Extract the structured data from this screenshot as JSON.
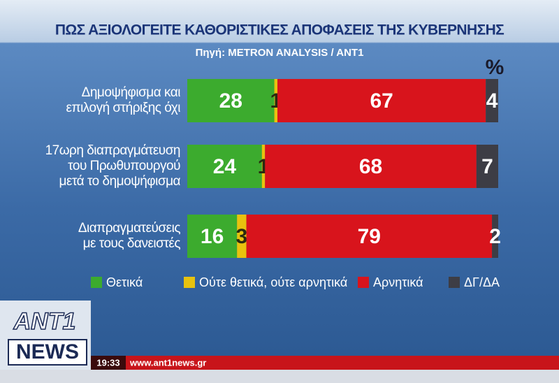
{
  "chart_data": {
    "type": "stacked-barh",
    "title": "ΠΩΣ ΑΞΙΟΛΟΓΕΙΤΕ ΚΑΘΟΡΙΣΤΙΚΕΣ ΑΠΟΦΑΣΕΙΣ ΤΗΣ ΚΥΒΕΡΝΗΣΗΣ",
    "subtitle": "Πηγή: METRON ANALYSIS / ANT1",
    "unit": "%",
    "categories": [
      "Δημοψήφισμα και\nεπιλογή στήριξης όχι",
      "17ωρη διαπραγμάτευση\nτου Πρωθυπουργού\nμετά το δημοψήφισμα",
      "Διαπραγματεύσεις\nμε τους δανειστές"
    ],
    "series": [
      {
        "name": "Θετικά",
        "color": "#3cab2e",
        "values": [
          28,
          24,
          16
        ]
      },
      {
        "name": "Ούτε θετικά, ούτε αρνητικά",
        "color": "#e8c20e",
        "values": [
          1,
          1,
          3
        ]
      },
      {
        "name": "Αρνητικά",
        "color": "#d8141c",
        "values": [
          67,
          68,
          79
        ]
      },
      {
        "name": "ΔΓ/ΔΑ",
        "color": "#3d3d45",
        "values": [
          4,
          7,
          2
        ]
      }
    ],
    "xlim": [
      0,
      100
    ]
  },
  "overlay": {
    "logo": "ANT1",
    "news": "NEWS",
    "time": "19:33",
    "url": "www.ant1news.gr"
  }
}
